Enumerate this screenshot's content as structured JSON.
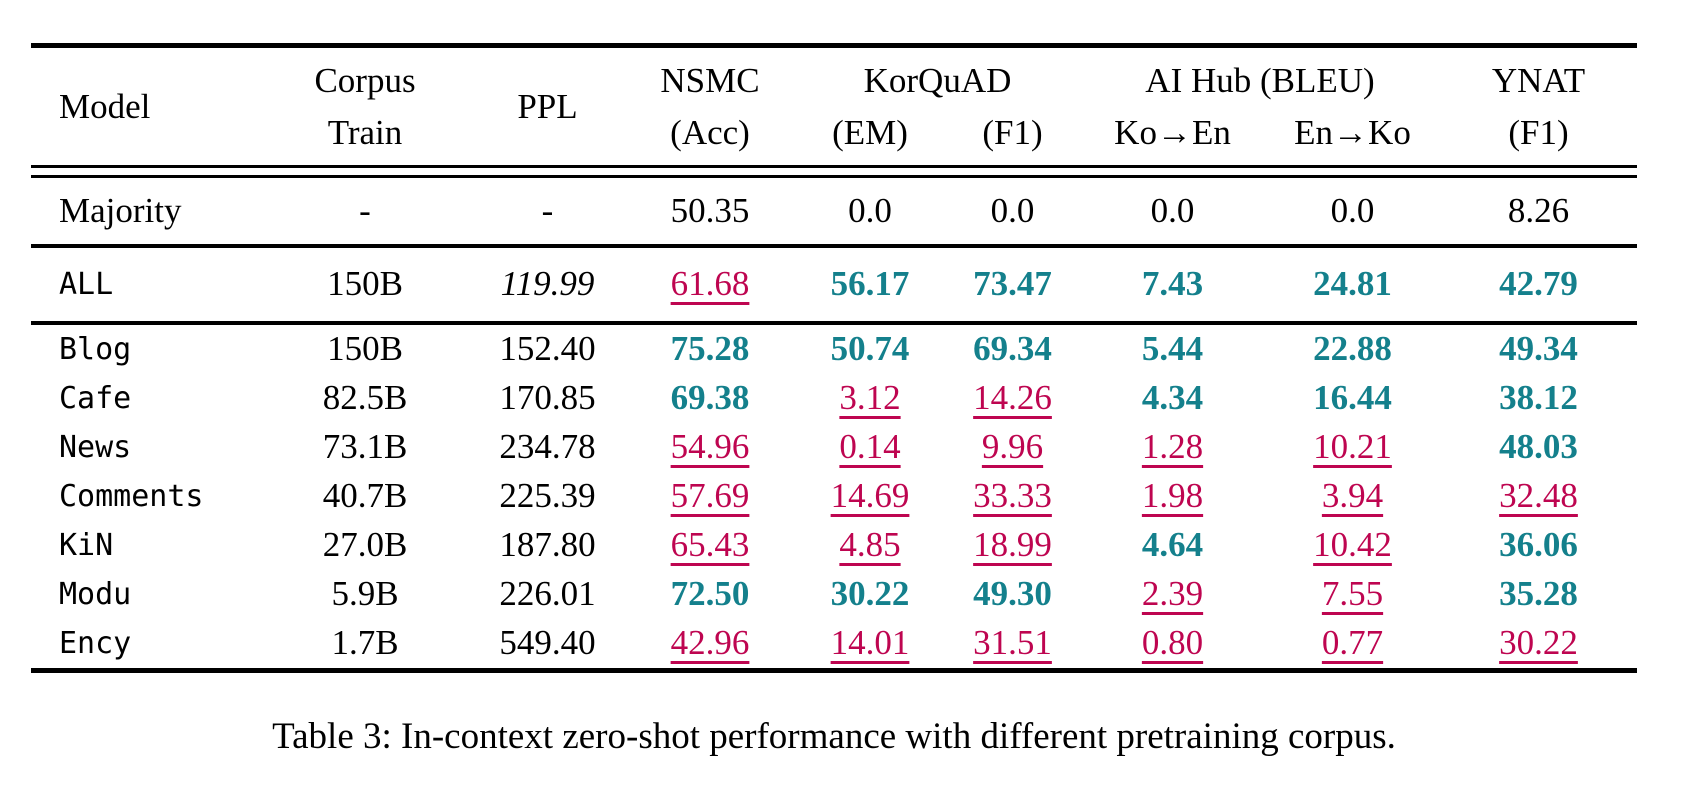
{
  "colors": {
    "best_score": "#14808C",
    "underperform_score": "#BE0550",
    "text": "#000000"
  },
  "header": {
    "model": "Model",
    "corpus": [
      "Corpus",
      "Train"
    ],
    "ppl": "PPL",
    "nsmc": [
      "NSMC",
      "(Acc)"
    ],
    "korquad": "KorQuAD",
    "korquad_sub": [
      "(EM)",
      "(F1)"
    ],
    "aihub": "AI Hub (BLEU)",
    "aihub_sub": [
      "Ko→En",
      "En→Ko"
    ],
    "ynat": [
      "YNAT",
      "(F1)"
    ]
  },
  "rows": [
    {
      "name": "Majority",
      "corpus": "-",
      "ppl": {
        "v": "-",
        "s": "plain"
      },
      "cells": [
        {
          "v": "50.35",
          "s": "plain"
        },
        {
          "v": "0.0",
          "s": "plain"
        },
        {
          "v": "0.0",
          "s": "plain"
        },
        {
          "v": "0.0",
          "s": "plain"
        },
        {
          "v": "0.0",
          "s": "plain"
        },
        {
          "v": "8.26",
          "s": "plain"
        }
      ]
    },
    {
      "name": "ALL",
      "corpus": "150B",
      "ppl": {
        "v": "119.99",
        "s": "italic"
      },
      "cells": [
        {
          "v": "61.68",
          "s": "under"
        },
        {
          "v": "56.17",
          "s": "best"
        },
        {
          "v": "73.47",
          "s": "best"
        },
        {
          "v": "7.43",
          "s": "best"
        },
        {
          "v": "24.81",
          "s": "best"
        },
        {
          "v": "42.79",
          "s": "best"
        }
      ]
    },
    {
      "name": "Blog",
      "corpus": "150B",
      "ppl": {
        "v": "152.40",
        "s": "plain"
      },
      "cells": [
        {
          "v": "75.28",
          "s": "best"
        },
        {
          "v": "50.74",
          "s": "best"
        },
        {
          "v": "69.34",
          "s": "best"
        },
        {
          "v": "5.44",
          "s": "best"
        },
        {
          "v": "22.88",
          "s": "best"
        },
        {
          "v": "49.34",
          "s": "best"
        }
      ]
    },
    {
      "name": "Cafe",
      "corpus": "82.5B",
      "ppl": {
        "v": "170.85",
        "s": "plain"
      },
      "cells": [
        {
          "v": "69.38",
          "s": "best"
        },
        {
          "v": "3.12",
          "s": "under"
        },
        {
          "v": "14.26",
          "s": "under"
        },
        {
          "v": "4.34",
          "s": "best"
        },
        {
          "v": "16.44",
          "s": "best"
        },
        {
          "v": "38.12",
          "s": "best"
        }
      ]
    },
    {
      "name": "News",
      "corpus": "73.1B",
      "ppl": {
        "v": "234.78",
        "s": "plain"
      },
      "cells": [
        {
          "v": "54.96",
          "s": "under"
        },
        {
          "v": "0.14",
          "s": "under"
        },
        {
          "v": "9.96",
          "s": "under"
        },
        {
          "v": "1.28",
          "s": "under"
        },
        {
          "v": "10.21",
          "s": "under"
        },
        {
          "v": "48.03",
          "s": "best"
        }
      ]
    },
    {
      "name": "Comments",
      "corpus": "40.7B",
      "ppl": {
        "v": "225.39",
        "s": "plain"
      },
      "cells": [
        {
          "v": "57.69",
          "s": "under"
        },
        {
          "v": "14.69",
          "s": "under"
        },
        {
          "v": "33.33",
          "s": "under"
        },
        {
          "v": "1.98",
          "s": "under"
        },
        {
          "v": "3.94",
          "s": "under"
        },
        {
          "v": "32.48",
          "s": "under"
        }
      ]
    },
    {
      "name": "KiN",
      "corpus": "27.0B",
      "ppl": {
        "v": "187.80",
        "s": "plain"
      },
      "cells": [
        {
          "v": "65.43",
          "s": "under"
        },
        {
          "v": "4.85",
          "s": "under"
        },
        {
          "v": "18.99",
          "s": "under"
        },
        {
          "v": "4.64",
          "s": "best"
        },
        {
          "v": "10.42",
          "s": "under"
        },
        {
          "v": "36.06",
          "s": "best"
        }
      ]
    },
    {
      "name": "Modu",
      "corpus": "5.9B",
      "ppl": {
        "v": "226.01",
        "s": "plain"
      },
      "cells": [
        {
          "v": "72.50",
          "s": "best"
        },
        {
          "v": "30.22",
          "s": "best"
        },
        {
          "v": "49.30",
          "s": "best"
        },
        {
          "v": "2.39",
          "s": "under"
        },
        {
          "v": "7.55",
          "s": "under"
        },
        {
          "v": "35.28",
          "s": "best"
        }
      ]
    },
    {
      "name": "Ency",
      "corpus": "1.7B",
      "ppl": {
        "v": "549.40",
        "s": "plain"
      },
      "cells": [
        {
          "v": "42.96",
          "s": "under"
        },
        {
          "v": "14.01",
          "s": "under"
        },
        {
          "v": "31.51",
          "s": "under"
        },
        {
          "v": "0.80",
          "s": "under"
        },
        {
          "v": "0.77",
          "s": "under"
        },
        {
          "v": "30.22",
          "s": "under"
        }
      ]
    }
  ],
  "caption": "Table 3: In-context zero-shot performance with different pretraining corpus."
}
